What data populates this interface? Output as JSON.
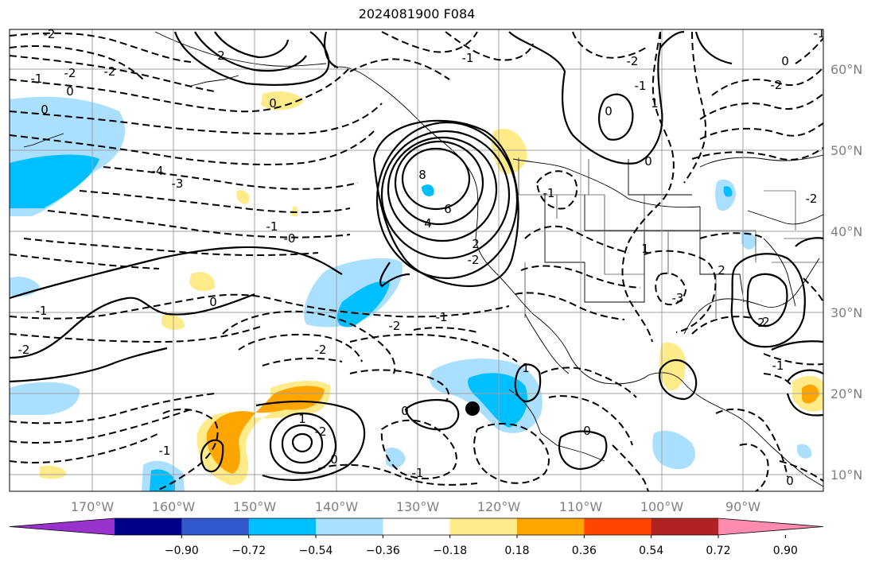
{
  "title": "2024081900 F084",
  "lon_ticks": [
    "170°W",
    "160°W",
    "150°W",
    "140°W",
    "130°W",
    "120°W",
    "110°W",
    "100°W",
    "90°W"
  ],
  "lat_ticks": [
    "60°N",
    "50°N",
    "40°N",
    "30°N",
    "20°N",
    "10°N"
  ],
  "colorbar": {
    "colors": [
      "#9932cc",
      "#00008b",
      "#3158cc",
      "#00bfff",
      "#aadfff",
      "#ffffff",
      "#ffeb8a",
      "#ffa500",
      "#ff4500",
      "#b22222",
      "#ff8caf"
    ],
    "ticks": [
      "−0.90",
      "−0.72",
      "−0.54",
      "−0.36",
      "−0.18",
      "0.18",
      "0.36",
      "0.54",
      "0.72",
      "0.90"
    ]
  },
  "contour_labels": [
    "-2",
    "-1",
    "-2",
    "-2",
    "0",
    "0",
    "2",
    "0",
    "-4",
    "-3",
    "-1",
    "-0",
    "0",
    "-1",
    "-2",
    "-1",
    "-2",
    "-2",
    "8",
    "6",
    "4",
    "-2",
    "2",
    "-1",
    "-1",
    "1",
    "0",
    "-2",
    "-1",
    "0",
    "0",
    "-2",
    "1",
    "2",
    "2",
    "-1",
    "-2",
    "-3",
    "0",
    "-2",
    "1",
    "0",
    "-1",
    "2",
    "1",
    "0",
    "0",
    "-1",
    "-1"
  ],
  "marker": "storm-center-dot"
}
